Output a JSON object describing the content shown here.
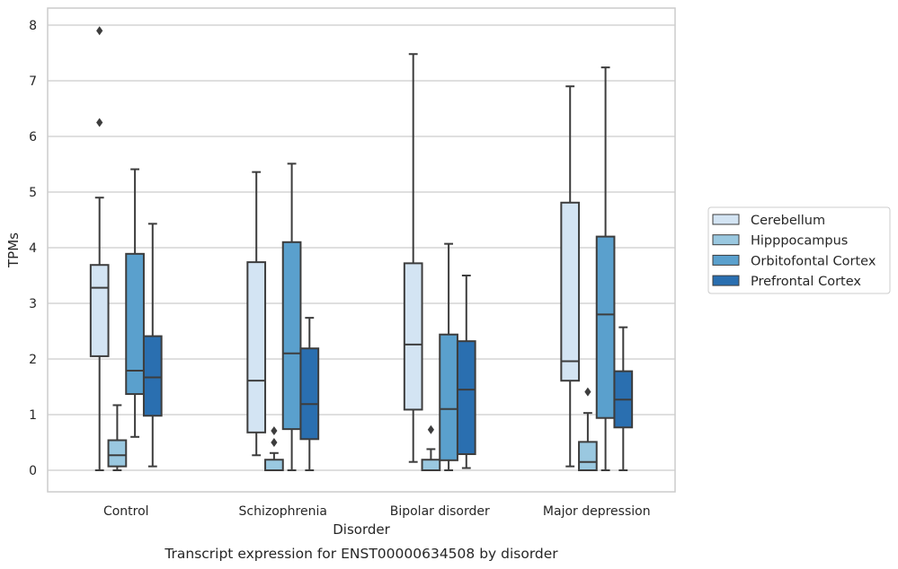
{
  "chart_data": {
    "type": "boxplot",
    "caption": "Transcript expression for ENST00000634508 by disorder",
    "xlabel": "Disorder",
    "ylabel": "TPMs",
    "ylim": [
      -0.38,
      8.3
    ],
    "yticks": [
      0,
      1,
      2,
      3,
      4,
      5,
      6,
      7,
      8
    ],
    "grid": true,
    "legend_position": "right",
    "categories": [
      "Control",
      "Schizophrenia",
      "Bipolar disorder",
      "Major depression"
    ],
    "series": [
      {
        "name": "Cerebellum",
        "color": "#d3e4f3",
        "boxes": [
          {
            "whislo": 0.0,
            "q1": 2.05,
            "med": 3.28,
            "q3": 3.69,
            "whishi": 4.9,
            "fliers": [
              6.25,
              7.9
            ]
          },
          {
            "whislo": 0.27,
            "q1": 0.68,
            "med": 1.61,
            "q3": 3.74,
            "whishi": 5.36,
            "fliers": []
          },
          {
            "whislo": 0.15,
            "q1": 1.09,
            "med": 2.26,
            "q3": 3.72,
            "whishi": 7.48,
            "fliers": []
          },
          {
            "whislo": 0.07,
            "q1": 1.61,
            "med": 1.96,
            "q3": 4.81,
            "whishi": 6.9,
            "fliers": []
          }
        ]
      },
      {
        "name": "Hipppocampus",
        "color": "#9ac8e0",
        "boxes": [
          {
            "whislo": 0.0,
            "q1": 0.07,
            "med": 0.27,
            "q3": 0.54,
            "whishi": 1.17,
            "fliers": []
          },
          {
            "whislo": 0.0,
            "q1": 0.0,
            "med": 0.0,
            "q3": 0.19,
            "whishi": 0.31,
            "fliers": [
              0.5,
              0.71
            ]
          },
          {
            "whislo": 0.0,
            "q1": 0.0,
            "med": 0.0,
            "q3": 0.19,
            "whishi": 0.38,
            "fliers": [
              0.73
            ]
          },
          {
            "whislo": 0.0,
            "q1": 0.0,
            "med": 0.15,
            "q3": 0.51,
            "whishi": 1.03,
            "fliers": [
              1.41
            ]
          }
        ]
      },
      {
        "name": "Orbitofontal Cortex",
        "color": "#5aa0cd",
        "boxes": [
          {
            "whislo": 0.6,
            "q1": 1.37,
            "med": 1.79,
            "q3": 3.89,
            "whishi": 5.41,
            "fliers": []
          },
          {
            "whislo": 0.0,
            "q1": 0.74,
            "med": 2.1,
            "q3": 4.1,
            "whishi": 5.51,
            "fliers": []
          },
          {
            "whislo": 0.0,
            "q1": 0.18,
            "med": 1.1,
            "q3": 2.44,
            "whishi": 4.07,
            "fliers": []
          },
          {
            "whislo": 0.0,
            "q1": 0.94,
            "med": 2.8,
            "q3": 4.2,
            "whishi": 7.24,
            "fliers": []
          }
        ]
      },
      {
        "name": "Prefrontal Cortex",
        "color": "#2a6fb0",
        "boxes": [
          {
            "whislo": 0.07,
            "q1": 0.98,
            "med": 1.67,
            "q3": 2.41,
            "whishi": 4.43,
            "fliers": []
          },
          {
            "whislo": 0.0,
            "q1": 0.56,
            "med": 1.19,
            "q3": 2.19,
            "whishi": 2.74,
            "fliers": []
          },
          {
            "whislo": 0.04,
            "q1": 0.29,
            "med": 1.45,
            "q3": 2.32,
            "whishi": 3.5,
            "fliers": []
          },
          {
            "whislo": 0.0,
            "q1": 0.77,
            "med": 1.27,
            "q3": 1.78,
            "whishi": 2.57,
            "fliers": []
          }
        ]
      }
    ]
  }
}
